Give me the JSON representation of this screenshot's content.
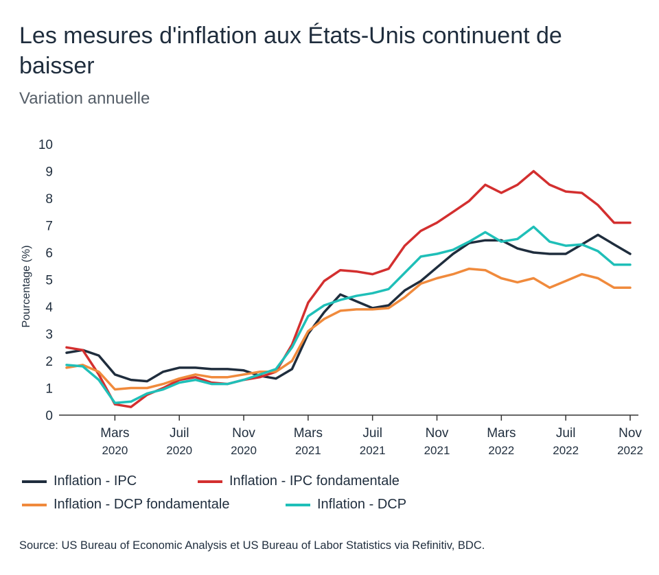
{
  "title": "Les mesures d'inflation aux États-Unis continuent de baisser",
  "subtitle": "Variation annuelle",
  "source": "Source: US Bureau of Economic Analysis et US Bureau of Labor Statistics via Refinitiv, BDC.",
  "chart_data": {
    "type": "line",
    "ylabel": "Pourcentage (%)",
    "ylim": [
      0,
      10
    ],
    "yticks": [
      0,
      1,
      2,
      3,
      4,
      5,
      6,
      7,
      8,
      9,
      10
    ],
    "x": [
      "2019-12",
      "2020-01",
      "2020-02",
      "2020-03",
      "2020-04",
      "2020-05",
      "2020-06",
      "2020-07",
      "2020-08",
      "2020-09",
      "2020-10",
      "2020-11",
      "2020-12",
      "2021-01",
      "2021-02",
      "2021-03",
      "2021-04",
      "2021-05",
      "2021-06",
      "2021-07",
      "2021-08",
      "2021-09",
      "2021-10",
      "2021-11",
      "2021-12",
      "2022-01",
      "2022-02",
      "2022-03",
      "2022-04",
      "2022-05",
      "2022-06",
      "2022-07",
      "2022-08",
      "2022-09",
      "2022-10",
      "2022-11"
    ],
    "xticks": [
      {
        "month": "Mars",
        "year": "2020",
        "x": "2020-03"
      },
      {
        "month": "Juil",
        "year": "2020",
        "x": "2020-07"
      },
      {
        "month": "Nov",
        "year": "2020",
        "x": "2020-11"
      },
      {
        "month": "Mars",
        "year": "2021",
        "x": "2021-03"
      },
      {
        "month": "Juil",
        "year": "2021",
        "x": "2021-07"
      },
      {
        "month": "Nov",
        "year": "2021",
        "x": "2021-11"
      },
      {
        "month": "Mars",
        "year": "2022",
        "x": "2022-03"
      },
      {
        "month": "Juil",
        "year": "2022",
        "x": "2022-07"
      },
      {
        "month": "Nov",
        "year": "2022",
        "x": "2022-11"
      }
    ],
    "grid": false,
    "legend_position": "bottom",
    "series": [
      {
        "name": "Inflation - IPC",
        "color": "#1f2d3d",
        "values": [
          2.3,
          2.4,
          2.2,
          1.5,
          1.3,
          1.25,
          1.6,
          1.75,
          1.75,
          1.7,
          1.7,
          1.65,
          1.45,
          1.35,
          1.7,
          3.0,
          3.8,
          4.45,
          4.2,
          3.95,
          4.05,
          4.6,
          4.95,
          5.45,
          5.95,
          6.35,
          6.45,
          6.45,
          6.15,
          6.0,
          5.95,
          5.95,
          6.3,
          6.65,
          6.3,
          5.95
        ]
      },
      {
        "name": "Inflation - IPC fondamentale",
        "color": "#d32f2f",
        "values": [
          2.5,
          2.4,
          1.5,
          0.4,
          0.3,
          0.75,
          1.0,
          1.3,
          1.4,
          1.2,
          1.15,
          1.3,
          1.4,
          1.6,
          2.6,
          4.15,
          4.95,
          5.35,
          5.3,
          5.2,
          5.4,
          6.25,
          6.8,
          7.1,
          7.5,
          7.9,
          8.5,
          8.2,
          8.5,
          9.0,
          8.5,
          8.25,
          8.2,
          7.75,
          7.1,
          7.1
        ]
      },
      {
        "name": "Inflation - DCP fondamentale",
        "color": "#f08a3c",
        "values": [
          1.75,
          1.85,
          1.6,
          0.95,
          1.0,
          1.0,
          1.15,
          1.35,
          1.5,
          1.4,
          1.4,
          1.5,
          1.6,
          1.6,
          2.0,
          3.1,
          3.55,
          3.85,
          3.9,
          3.9,
          3.95,
          4.35,
          4.85,
          5.05,
          5.2,
          5.4,
          5.35,
          5.05,
          4.9,
          5.05,
          4.7,
          4.95,
          5.2,
          5.05,
          4.7,
          4.7
        ]
      },
      {
        "name": "Inflation - DCP",
        "color": "#1fbfb8",
        "values": [
          1.85,
          1.8,
          1.3,
          0.45,
          0.5,
          0.8,
          0.95,
          1.2,
          1.3,
          1.15,
          1.15,
          1.3,
          1.5,
          1.7,
          2.5,
          3.65,
          4.05,
          4.25,
          4.4,
          4.5,
          4.65,
          5.25,
          5.85,
          5.95,
          6.1,
          6.4,
          6.75,
          6.4,
          6.5,
          6.95,
          6.4,
          6.25,
          6.3,
          6.05,
          5.55,
          5.55
        ]
      }
    ]
  }
}
